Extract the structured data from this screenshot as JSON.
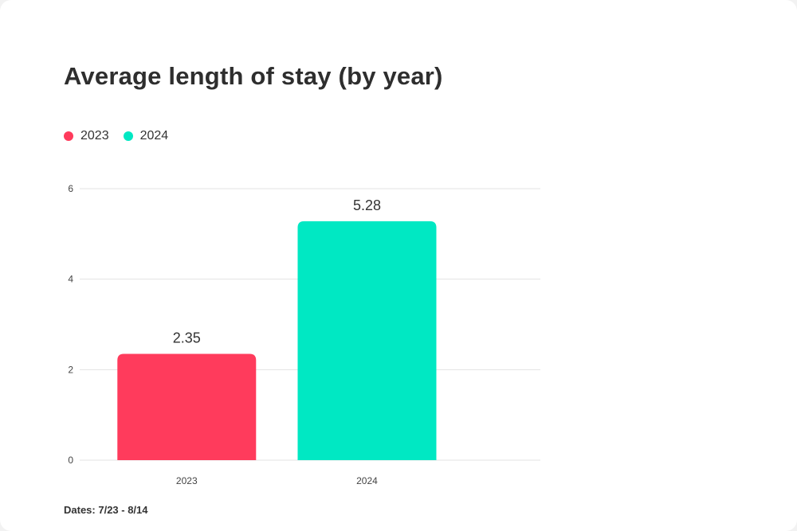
{
  "chart_data": {
    "type": "bar",
    "title": "Average length of stay (by year)",
    "categories": [
      "2023",
      "2024"
    ],
    "values": [
      2.35,
      5.28
    ],
    "colors": [
      "#ff3b5c",
      "#00e8c3"
    ],
    "legend": [
      "2023",
      "2024"
    ],
    "legend_position": "top-left",
    "ylim": [
      0,
      6
    ],
    "yticks": [
      "0",
      "2",
      "4",
      "6"
    ],
    "ytick_values": [
      0,
      2,
      4,
      6
    ],
    "data_labels": [
      "2.35",
      "5.28"
    ],
    "grid": true,
    "xlabel": "",
    "ylabel": ""
  },
  "footnote": "Dates: 7/23 - 8/14"
}
